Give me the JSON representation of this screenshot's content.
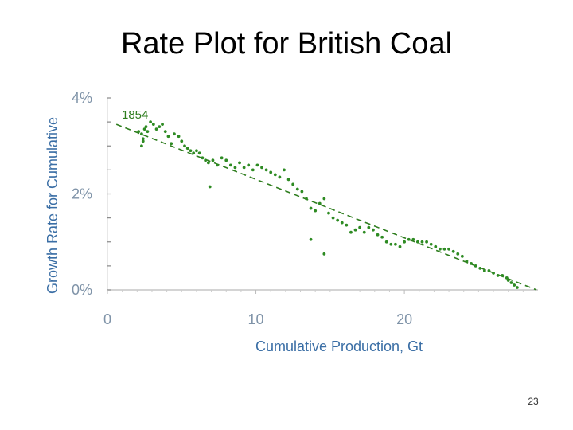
{
  "slide": {
    "title": "Rate Plot for British Coal",
    "page_number": "23"
  },
  "colors": {
    "points": "#2e8b23",
    "trend": "#2e7d1e",
    "axis_text": "#7f93a8",
    "axis_title": "#3a6ea5",
    "axis_line": "#999999"
  },
  "chart_data": {
    "type": "scatter",
    "title": "Rate Plot for British Coal",
    "xlabel": "Cumulative Production, Gt",
    "ylabel": "Growth Rate for Cumulative",
    "xlim": [
      0,
      29
    ],
    "ylim": [
      0,
      4
    ],
    "x_ticks": [
      0,
      10,
      20
    ],
    "x_tick_labels": [
      "0",
      "10",
      "20"
    ],
    "y_ticks": [
      0,
      2,
      4
    ],
    "y_tick_labels": [
      "0%",
      "2%",
      "4%"
    ],
    "y_minor_ticks": [
      0.5,
      1.0,
      1.5,
      2.5,
      3.0,
      3.5
    ],
    "annotation": {
      "text": "1854",
      "x": 2.1,
      "y": 3.3
    },
    "trendline": {
      "x": [
        0.6,
        28.9
      ],
      "y": [
        3.45,
        0.0
      ],
      "style": "dashed"
    },
    "series": [
      {
        "x": [
          2.1,
          2.3,
          2.4,
          2.5,
          2.6,
          2.7,
          2.9,
          3.1,
          3.3,
          3.5,
          3.7,
          3.9,
          4.1,
          4.3,
          4.5,
          4.8,
          5.0,
          5.2,
          5.4,
          5.6,
          5.8,
          6.0,
          6.2,
          6.4,
          6.6,
          6.8,
          7.1,
          7.4,
          7.7,
          8.0,
          8.3,
          8.6,
          8.9,
          9.2,
          9.5,
          9.8,
          10.1,
          10.4,
          10.7,
          11.0,
          11.3,
          11.6,
          11.9,
          12.2,
          12.5,
          12.8,
          13.1,
          13.4,
          13.7,
          14.0,
          14.3,
          14.6,
          14.9,
          15.2,
          15.5,
          15.8,
          16.1,
          16.4,
          16.7,
          17.0,
          17.3,
          17.6,
          17.9,
          18.2,
          18.5,
          18.8,
          19.1,
          19.4,
          19.7,
          20.0,
          20.3,
          20.6,
          20.9,
          21.2,
          21.5,
          21.8,
          22.1,
          22.4,
          22.7,
          23.0,
          23.3,
          23.6,
          23.9,
          24.2,
          24.5,
          24.8,
          25.1,
          25.4,
          25.7,
          26.0,
          26.3,
          26.6,
          26.9,
          27.0,
          27.2,
          27.4,
          27.6,
          13.7,
          14.6,
          6.9,
          2.3,
          2.4
        ],
        "y": [
          3.3,
          3.25,
          3.1,
          3.35,
          3.4,
          3.3,
          3.5,
          3.45,
          3.35,
          3.4,
          3.45,
          3.3,
          3.2,
          3.05,
          3.25,
          3.2,
          3.1,
          3.0,
          2.95,
          2.9,
          2.85,
          2.9,
          2.85,
          2.75,
          2.7,
          2.65,
          2.7,
          2.6,
          2.75,
          2.7,
          2.6,
          2.55,
          2.65,
          2.55,
          2.6,
          2.5,
          2.6,
          2.55,
          2.5,
          2.45,
          2.4,
          2.35,
          2.5,
          2.3,
          2.2,
          2.1,
          2.05,
          1.9,
          1.7,
          1.65,
          1.8,
          1.9,
          1.6,
          1.5,
          1.45,
          1.4,
          1.35,
          1.2,
          1.25,
          1.3,
          1.2,
          1.3,
          1.25,
          1.15,
          1.1,
          1.0,
          0.95,
          0.95,
          0.9,
          1.0,
          1.05,
          1.05,
          1.0,
          1.0,
          1.0,
          0.95,
          0.9,
          0.85,
          0.85,
          0.85,
          0.8,
          0.75,
          0.7,
          0.6,
          0.55,
          0.5,
          0.45,
          0.4,
          0.4,
          0.35,
          0.3,
          0.3,
          0.25,
          0.2,
          0.15,
          0.1,
          0.05,
          1.05,
          0.75,
          2.15,
          3.0,
          3.15
        ]
      }
    ]
  }
}
